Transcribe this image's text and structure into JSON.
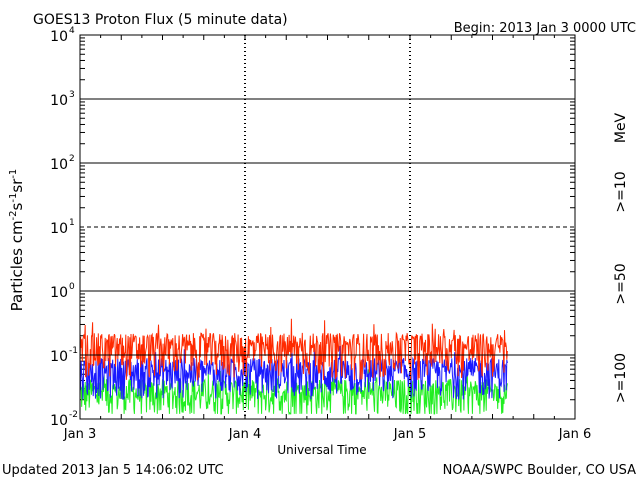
{
  "chart_data": {
    "type": "line",
    "title": "GOES13 Proton Flux (5 minute data)",
    "begin_label": "Begin: 2013 Jan 3 0000 UTC",
    "xlabel": "Universal Time",
    "ylabel": "Particles cm",
    "ylabel_exp1": "-2",
    "ylabel_s": "s",
    "ylabel_exp2": "-1",
    "ylabel_sr": "sr",
    "ylabel_exp3": "-1",
    "y_scale": "log",
    "ylim": [
      0.01,
      10000
    ],
    "y_ticks": [
      {
        "base": "10",
        "exp": "4"
      },
      {
        "base": "10",
        "exp": "3"
      },
      {
        "base": "10",
        "exp": "2"
      },
      {
        "base": "10",
        "exp": "1"
      },
      {
        "base": "10",
        "exp": "0"
      },
      {
        "base": "10",
        "exp": "-1"
      },
      {
        "base": "10",
        "exp": "-2"
      }
    ],
    "xlim": [
      0,
      3
    ],
    "x_ticks": [
      "Jan 3",
      "Jan 4",
      "Jan 5",
      "Jan 6"
    ],
    "data_end_day": 2.59,
    "thresholds": [
      {
        "value": 1000,
        "style": "solid"
      },
      {
        "value": 100,
        "style": "solid"
      },
      {
        "value": 10,
        "style": "dashed"
      },
      {
        "value": 1,
        "style": "solid"
      },
      {
        "value": 0.1,
        "style": "solid"
      }
    ],
    "legend_unit": "MeV",
    "series": [
      {
        "name": ">=10",
        "color": "#ff2a00",
        "base": 0.13,
        "spread": 0.09,
        "peak": 0.38
      },
      {
        "name": ">=50",
        "color": "#1a1aff",
        "base": 0.055,
        "spread": 0.035,
        "peak": 0.15
      },
      {
        "name": ">=100",
        "color": "#22ee22",
        "base": 0.026,
        "spread": 0.016,
        "peak": 0.062
      }
    ],
    "footer_left": "Updated 2013 Jan  5 14:06:02 UTC",
    "footer_right": "NOAA/SWPC Boulder, CO USA"
  }
}
